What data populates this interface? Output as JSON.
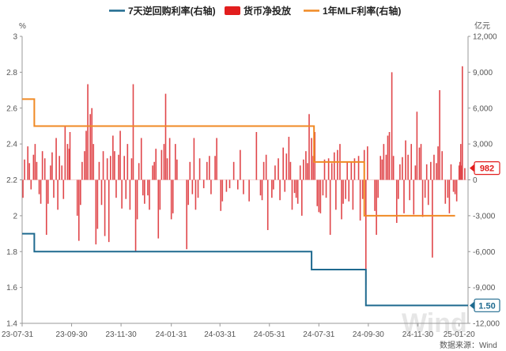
{
  "chart_data": {
    "type": "bar+line",
    "legend": [
      {
        "label": "7天逆回购利率(右轴)",
        "color": "#1f6a8f",
        "kind": "line"
      },
      {
        "label": "货币净投放",
        "color": "#e21e1e",
        "kind": "bar"
      },
      {
        "label": "1年MLF利率(右轴)",
        "color": "#f08a24",
        "kind": "line"
      }
    ],
    "left_axis": {
      "unit": "%",
      "ylim": [
        1.4,
        3.0
      ],
      "ticks": [
        "3",
        "2.8",
        "2.6",
        "2.4",
        "2.2",
        "2",
        "1.8",
        "1.6",
        "1.4"
      ]
    },
    "right_axis": {
      "unit": "亿元",
      "ylim": [
        -12000,
        12000
      ],
      "ticks": [
        "12,000",
        "9,000",
        "6,000",
        "3,000",
        "0",
        "-3,000",
        "-6,000",
        "-9,000",
        "-12,000"
      ]
    },
    "x_axis": {
      "range": [
        "2023-07-31",
        "2025-01-31"
      ],
      "ticks": [
        {
          "date": "2023-07-31",
          "label": "23-07-31"
        },
        {
          "date": "2023-09-30",
          "label": "23-09-30"
        },
        {
          "date": "2023-11-30",
          "label": "23-11-30"
        },
        {
          "date": "2024-01-31",
          "label": "24-01-31"
        },
        {
          "date": "2024-03-31",
          "label": "24-03-31"
        },
        {
          "date": "2024-05-31",
          "label": "24-05-31"
        },
        {
          "date": "2024-07-31",
          "label": "24-07-31"
        },
        {
          "date": "2024-09-30",
          "label": "24-09-30"
        },
        {
          "date": "2024-11-30",
          "label": "24-11-30"
        },
        {
          "date": "2025-01-20",
          "label": "25-01-20"
        }
      ]
    },
    "series": [
      {
        "name": "7天逆回购利率(右轴)",
        "type": "step",
        "color": "#1f6a8f",
        "points": [
          [
            "2023-07-31",
            1.9
          ],
          [
            "2023-08-15",
            1.8
          ],
          [
            "2024-07-22",
            1.7
          ],
          [
            "2024-09-27",
            1.5
          ],
          [
            "2025-01-31",
            1.5
          ]
        ]
      },
      {
        "name": "1年MLF利率(右轴)",
        "type": "step",
        "color": "#f08a24",
        "points": [
          [
            "2023-07-31",
            2.65
          ],
          [
            "2023-08-15",
            2.5
          ],
          [
            "2024-07-25",
            2.3
          ],
          [
            "2024-09-25",
            2.0
          ],
          [
            "2025-01-15",
            2.0
          ]
        ]
      },
      {
        "name": "货币净投放",
        "type": "bar",
        "color": "#e0464a",
        "points": [
          [
            "2023-08-01",
            -1500
          ],
          [
            "2023-08-03",
            1700
          ],
          [
            "2023-08-07",
            2800
          ],
          [
            "2023-08-09",
            1400
          ],
          [
            "2023-08-11",
            -800
          ],
          [
            "2023-08-14",
            2100
          ],
          [
            "2023-08-16",
            3000
          ],
          [
            "2023-08-18",
            1500
          ],
          [
            "2023-08-21",
            -1200
          ],
          [
            "2023-08-23",
            -2000
          ],
          [
            "2023-08-25",
            2400
          ],
          [
            "2023-08-28",
            1800
          ],
          [
            "2023-08-30",
            -4600
          ],
          [
            "2023-09-01",
            -2000
          ],
          [
            "2023-09-04",
            1200
          ],
          [
            "2023-09-06",
            2300
          ],
          [
            "2023-09-08",
            -1500
          ],
          [
            "2023-09-11",
            3500
          ],
          [
            "2023-09-13",
            -2500
          ],
          [
            "2023-09-15",
            2000
          ],
          [
            "2023-09-18",
            1200
          ],
          [
            "2023-09-20",
            -1600
          ],
          [
            "2023-09-22",
            4500
          ],
          [
            "2023-09-25",
            3000
          ],
          [
            "2023-09-27",
            2600
          ],
          [
            "2023-09-28",
            4000
          ],
          [
            "2023-10-07",
            -3000
          ],
          [
            "2023-10-09",
            -5100
          ],
          [
            "2023-10-11",
            -2100
          ],
          [
            "2023-10-13",
            1500
          ],
          [
            "2023-10-16",
            2400
          ],
          [
            "2023-10-18",
            4100
          ],
          [
            "2023-10-20",
            8000
          ],
          [
            "2023-10-23",
            5500
          ],
          [
            "2023-10-25",
            6000
          ],
          [
            "2023-10-27",
            3000
          ],
          [
            "2023-10-30",
            -5400
          ],
          [
            "2023-11-01",
            -4100
          ],
          [
            "2023-11-03",
            1500
          ],
          [
            "2023-11-06",
            -2100
          ],
          [
            "2023-11-08",
            2400
          ],
          [
            "2023-11-10",
            -4700
          ],
          [
            "2023-11-13",
            1800
          ],
          [
            "2023-11-15",
            -5200
          ],
          [
            "2023-11-17",
            2000
          ],
          [
            "2023-11-20",
            3700
          ],
          [
            "2023-11-22",
            2400
          ],
          [
            "2023-11-24",
            -1500
          ],
          [
            "2023-11-27",
            2100
          ],
          [
            "2023-11-29",
            4100
          ],
          [
            "2023-12-01",
            -2400
          ],
          [
            "2023-12-04",
            2000
          ],
          [
            "2023-12-06",
            -1600
          ],
          [
            "2023-12-08",
            3000
          ],
          [
            "2023-12-11",
            -2500
          ],
          [
            "2023-12-13",
            1800
          ],
          [
            "2023-12-15",
            8000
          ],
          [
            "2023-12-18",
            -6000
          ],
          [
            "2023-12-20",
            -3300
          ],
          [
            "2023-12-22",
            1400
          ],
          [
            "2023-12-25",
            3500
          ],
          [
            "2023-12-27",
            -1300
          ],
          [
            "2023-12-29",
            -2000
          ],
          [
            "2024-01-02",
            -1300
          ],
          [
            "2024-01-04",
            -2500
          ],
          [
            "2024-01-08",
            1200
          ],
          [
            "2024-01-10",
            1500
          ],
          [
            "2024-01-12",
            2600
          ],
          [
            "2024-01-15",
            -4900
          ],
          [
            "2024-01-17",
            -2500
          ],
          [
            "2024-01-19",
            2500
          ],
          [
            "2024-01-22",
            3000
          ],
          [
            "2024-01-24",
            7200
          ],
          [
            "2024-01-26",
            1800
          ],
          [
            "2024-01-29",
            3500
          ],
          [
            "2024-01-31",
            -3300
          ],
          [
            "2024-02-02",
            -2800
          ],
          [
            "2024-02-05",
            3000
          ],
          [
            "2024-02-07",
            1700
          ],
          [
            "2024-02-19",
            -5800
          ],
          [
            "2024-02-21",
            -2100
          ],
          [
            "2024-02-23",
            1500
          ],
          [
            "2024-02-26",
            -1200
          ],
          [
            "2024-02-28",
            3500
          ],
          [
            "2024-03-01",
            -2500
          ],
          [
            "2024-03-04",
            -1500
          ],
          [
            "2024-03-06",
            1800
          ],
          [
            "2024-03-11",
            -700
          ],
          [
            "2024-03-15",
            1500
          ],
          [
            "2024-03-18",
            2000
          ],
          [
            "2024-03-20",
            -1200
          ],
          [
            "2024-03-25",
            2000
          ],
          [
            "2024-03-27",
            3500
          ],
          [
            "2024-04-01",
            -2600
          ],
          [
            "2024-04-03",
            -1800
          ],
          [
            "2024-04-08",
            -1000
          ],
          [
            "2024-04-12",
            -700
          ],
          [
            "2024-04-17",
            1500
          ],
          [
            "2024-04-22",
            -800
          ],
          [
            "2024-04-25",
            2500
          ],
          [
            "2024-04-29",
            -1200
          ],
          [
            "2024-05-06",
            -1800
          ],
          [
            "2024-05-15",
            4000
          ],
          [
            "2024-05-20",
            -1300
          ],
          [
            "2024-05-22",
            -1700
          ],
          [
            "2024-05-24",
            1500
          ],
          [
            "2024-05-27",
            2100
          ],
          [
            "2024-05-29",
            -4200
          ],
          [
            "2024-06-03",
            -1500
          ],
          [
            "2024-06-05",
            -800
          ],
          [
            "2024-06-07",
            1200
          ],
          [
            "2024-06-11",
            1800
          ],
          [
            "2024-06-13",
            -1700
          ],
          [
            "2024-06-17",
            2700
          ],
          [
            "2024-06-19",
            -1000
          ],
          [
            "2024-06-21",
            2200
          ],
          [
            "2024-06-24",
            3600
          ],
          [
            "2024-06-26",
            1500
          ],
          [
            "2024-06-28",
            -2500
          ],
          [
            "2024-07-01",
            -1100
          ],
          [
            "2024-07-03",
            -1500
          ],
          [
            "2024-07-05",
            -2000
          ],
          [
            "2024-07-08",
            1200
          ],
          [
            "2024-07-10",
            -3000
          ],
          [
            "2024-07-12",
            1700
          ],
          [
            "2024-07-15",
            2400
          ],
          [
            "2024-07-17",
            1400
          ],
          [
            "2024-07-19",
            5500
          ],
          [
            "2024-07-22",
            3500
          ],
          [
            "2024-07-24",
            2000
          ],
          [
            "2024-07-26",
            4000
          ],
          [
            "2024-07-29",
            -2200
          ],
          [
            "2024-07-31",
            -2700
          ],
          [
            "2024-08-02",
            -2800
          ],
          [
            "2024-08-05",
            -1300
          ],
          [
            "2024-08-07",
            1700
          ],
          [
            "2024-08-09",
            -1500
          ],
          [
            "2024-08-12",
            1800
          ],
          [
            "2024-08-14",
            -4600
          ],
          [
            "2024-08-16",
            1400
          ],
          [
            "2024-08-19",
            2300
          ],
          [
            "2024-08-21",
            -2500
          ],
          [
            "2024-08-23",
            2500
          ],
          [
            "2024-08-26",
            3000
          ],
          [
            "2024-08-28",
            -3300
          ],
          [
            "2024-08-30",
            -2000
          ],
          [
            "2024-09-02",
            -1600
          ],
          [
            "2024-09-04",
            1500
          ],
          [
            "2024-09-06",
            -1800
          ],
          [
            "2024-09-09",
            1500
          ],
          [
            "2024-09-11",
            -2500
          ],
          [
            "2024-09-13",
            1800
          ],
          [
            "2024-09-18",
            2000
          ],
          [
            "2024-09-20",
            -3400
          ],
          [
            "2024-09-23",
            -1600
          ],
          [
            "2024-09-25",
            2500
          ],
          [
            "2024-09-27",
            -8800
          ],
          [
            "2024-09-29",
            2800
          ],
          [
            "2024-10-08",
            -2600
          ],
          [
            "2024-10-10",
            -4600
          ],
          [
            "2024-10-12",
            -1500
          ],
          [
            "2024-10-15",
            2000
          ],
          [
            "2024-10-17",
            1700
          ],
          [
            "2024-10-19",
            3000
          ],
          [
            "2024-10-22",
            2100
          ],
          [
            "2024-10-24",
            3700
          ],
          [
            "2024-10-26",
            4000
          ],
          [
            "2024-10-29",
            9000
          ],
          [
            "2024-10-31",
            2000
          ],
          [
            "2024-11-04",
            -3600
          ],
          [
            "2024-11-06",
            -1600
          ],
          [
            "2024-11-08",
            1300
          ],
          [
            "2024-11-11",
            1900
          ],
          [
            "2024-11-13",
            -2800
          ],
          [
            "2024-11-15",
            3300
          ],
          [
            "2024-11-18",
            2100
          ],
          [
            "2024-11-20",
            -1700
          ],
          [
            "2024-11-22",
            3000
          ],
          [
            "2024-11-25",
            -2900
          ],
          [
            "2024-11-27",
            1200
          ],
          [
            "2024-11-29",
            5700
          ],
          [
            "2024-12-02",
            2700
          ],
          [
            "2024-12-04",
            3000
          ],
          [
            "2024-12-06",
            -3100
          ],
          [
            "2024-12-09",
            -1500
          ],
          [
            "2024-12-11",
            1300
          ],
          [
            "2024-12-13",
            -2100
          ],
          [
            "2024-12-16",
            1500
          ],
          [
            "2024-12-18",
            -6500
          ],
          [
            "2024-12-20",
            2100
          ],
          [
            "2024-12-23",
            1400
          ],
          [
            "2024-12-25",
            2800
          ],
          [
            "2024-12-27",
            7500
          ],
          [
            "2024-12-30",
            2400
          ],
          [
            "2025-01-03",
            -2000
          ],
          [
            "2025-01-06",
            -1500
          ],
          [
            "2025-01-08",
            -2800
          ],
          [
            "2025-01-10",
            1300
          ],
          [
            "2025-01-13",
            -1000
          ],
          [
            "2025-01-15",
            -1200
          ],
          [
            "2025-01-17",
            -1800
          ],
          [
            "2025-01-20",
            1200
          ],
          [
            "2025-01-21",
            1500
          ],
          [
            "2025-01-22",
            3000
          ],
          [
            "2025-01-23",
            1200
          ],
          [
            "2025-01-24",
            9500
          ],
          [
            "2025-01-27",
            982
          ]
        ]
      }
    ],
    "callouts": [
      {
        "series": "货币净投放",
        "value": 982,
        "label": "982"
      },
      {
        "series": "7天逆回购利率(右轴)",
        "value": 1.5,
        "label": "1.50"
      }
    ],
    "grid": false,
    "legend_position": "top-center"
  },
  "source": "数据来源：Wind",
  "watermark": "Wind"
}
